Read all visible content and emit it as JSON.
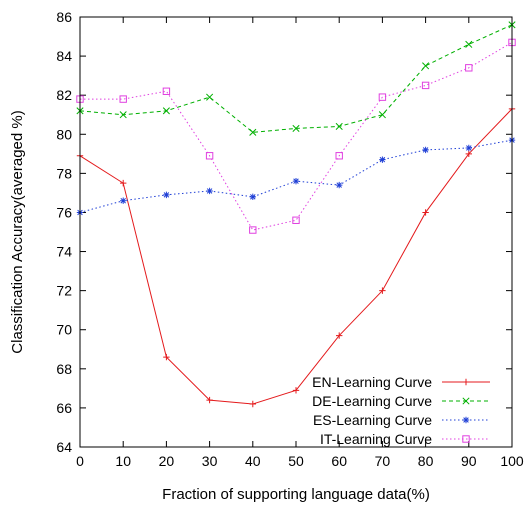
{
  "chart_data": {
    "type": "line",
    "title": "",
    "xlabel": "Fraction of supporting language data(%)",
    "ylabel": "Classification Accuracy(averaged %)",
    "x": [
      0,
      10,
      20,
      30,
      40,
      50,
      60,
      70,
      80,
      90,
      100
    ],
    "xlim": [
      0,
      100
    ],
    "ylim": [
      64,
      86
    ],
    "xticks": [
      "0",
      "10",
      "20",
      "30",
      "40",
      "50",
      "60",
      "70",
      "80",
      "90",
      "100"
    ],
    "yticks": [
      "64",
      "66",
      "68",
      "70",
      "72",
      "74",
      "76",
      "78",
      "80",
      "82",
      "84",
      "86"
    ],
    "grid": false,
    "legend_position": "bottom-right",
    "series": [
      {
        "name": "EN-Learning Curve",
        "color": "#e41a1c",
        "marker": "plus",
        "dash": "solid",
        "values": [
          78.9,
          77.5,
          68.6,
          66.4,
          66.2,
          66.9,
          69.7,
          72.0,
          76.0,
          79.0,
          81.3
        ]
      },
      {
        "name": "DE-Learning Curve",
        "color": "#00b000",
        "marker": "cross",
        "dash": "dashed",
        "values": [
          81.2,
          81.0,
          81.2,
          81.9,
          80.1,
          80.3,
          80.4,
          81.0,
          83.5,
          84.6,
          85.6
        ]
      },
      {
        "name": "ES-Learning Curve",
        "color": "#1f3fd6",
        "marker": "star",
        "dash": "dotted",
        "values": [
          76.0,
          76.6,
          76.9,
          77.1,
          76.8,
          77.6,
          77.4,
          78.7,
          79.2,
          79.3,
          79.7
        ]
      },
      {
        "name": "IT-Learning Curve",
        "color": "#e040e0",
        "marker": "square",
        "dash": "dotted",
        "values": [
          81.8,
          81.8,
          82.2,
          78.9,
          75.1,
          75.6,
          78.9,
          81.9,
          82.5,
          83.4,
          84.7
        ]
      }
    ]
  }
}
